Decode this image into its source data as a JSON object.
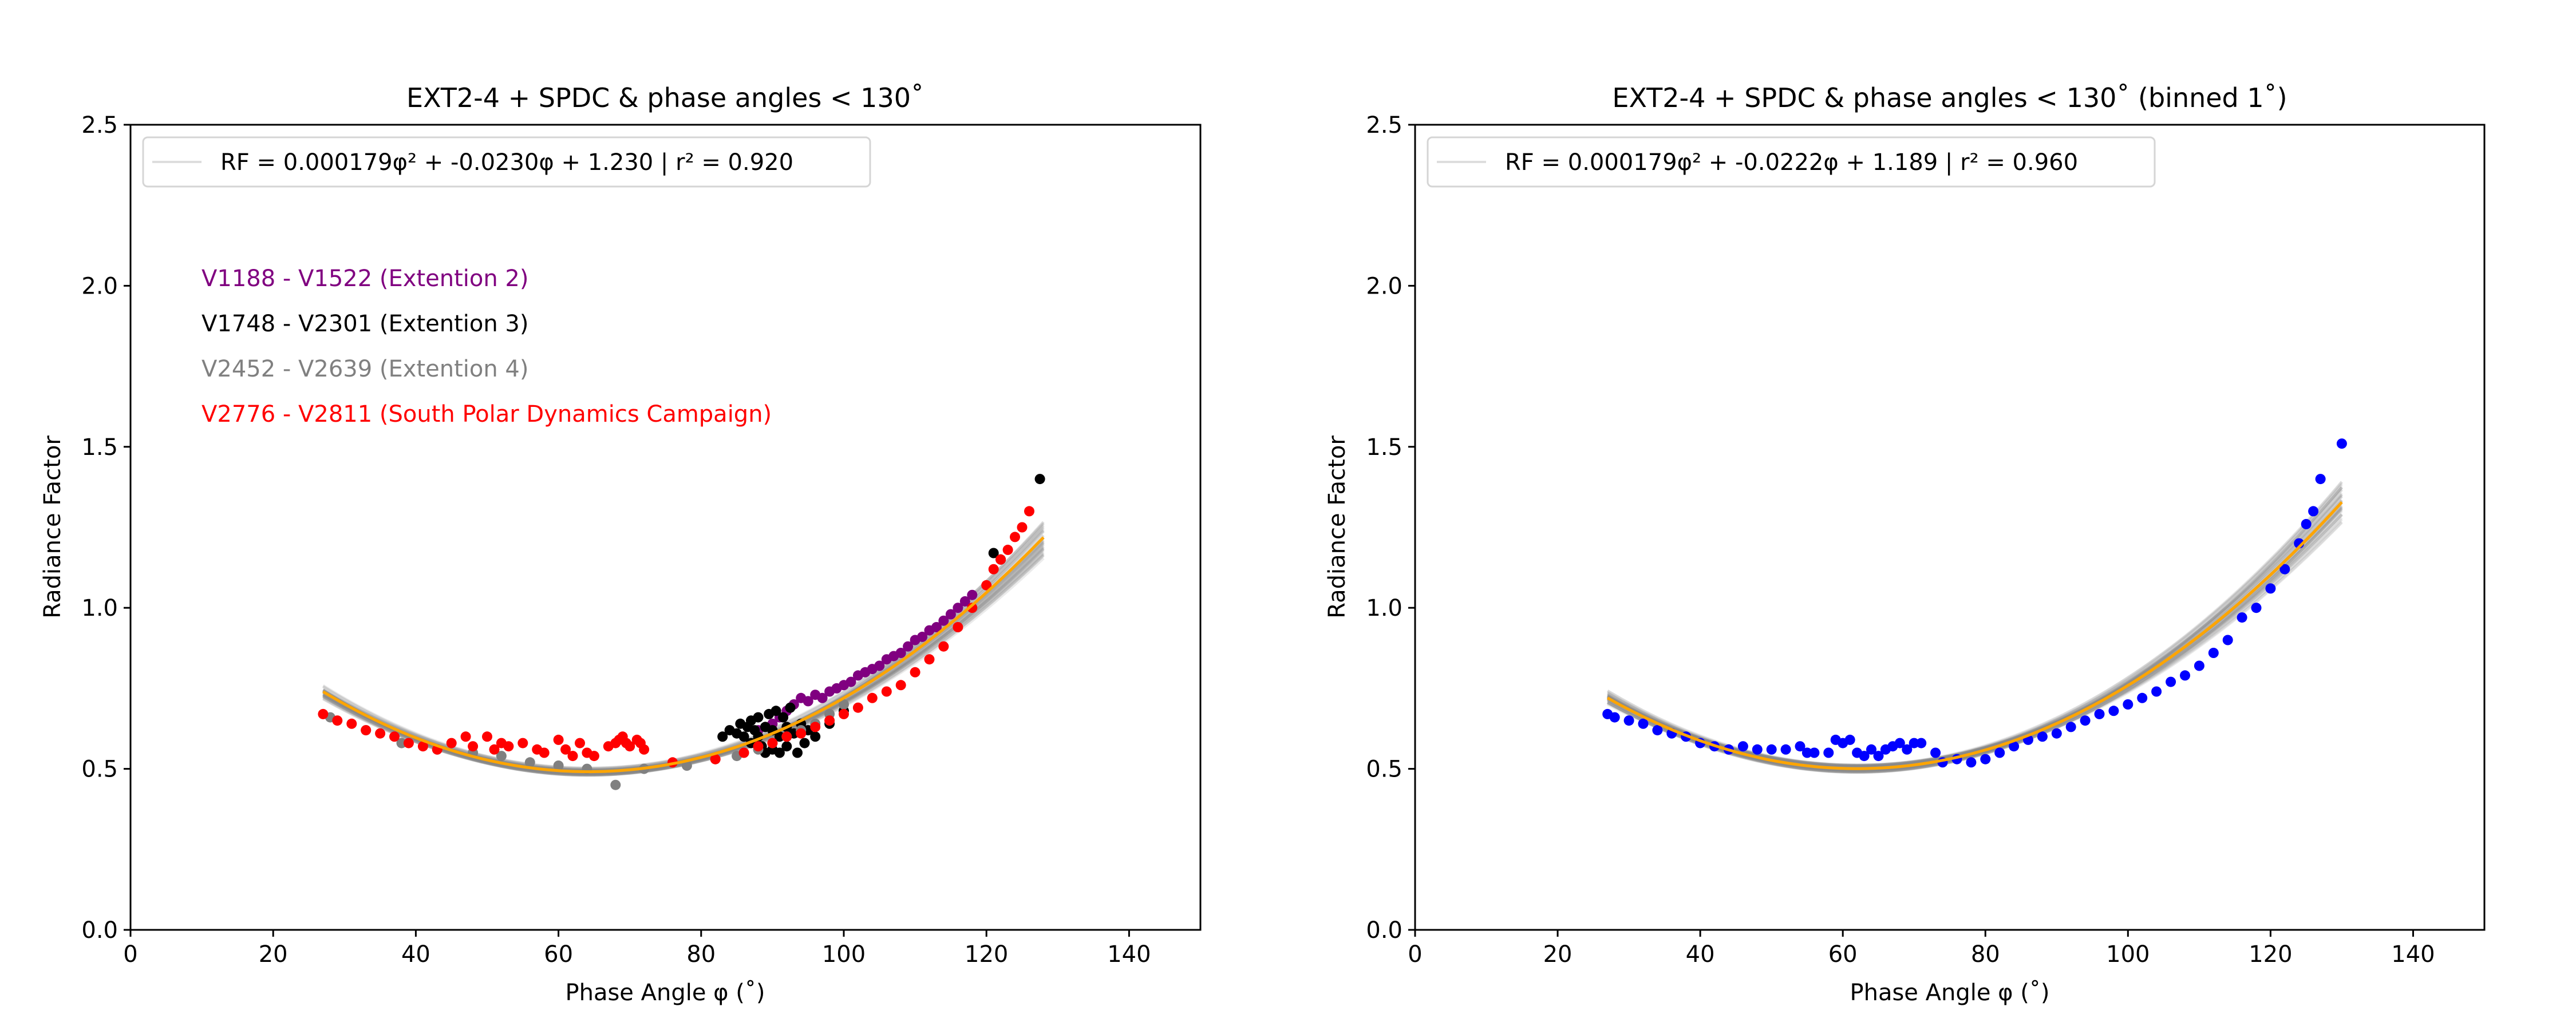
{
  "figure": {
    "colors": {
      "ext2": "#800080",
      "ext3": "#000000",
      "ext4": "#808080",
      "spdc": "#ff0000",
      "binned": "#0000ff",
      "fit": "#ffa500",
      "bootstrap": "#808080"
    }
  },
  "chart_data": [
    {
      "type": "scatter",
      "title": "EXT2-4 + SPDC & phase angles < 130˚",
      "xlabel": "Phase Angle φ (˚)",
      "ylabel": "Radiance Factor",
      "xlim": [
        0,
        150
      ],
      "ylim": [
        0.0,
        2.5
      ],
      "xticks": [
        "0",
        "20",
        "40",
        "60",
        "80",
        "100",
        "120",
        "140"
      ],
      "yticks": [
        "0.0",
        "0.5",
        "1.0",
        "1.5",
        "2.0",
        "2.5"
      ],
      "grid": false,
      "legend_position": "top-left",
      "fit": {
        "label": "RF = 0.000179φ² + -0.0230φ +   1.230  |  r² = 0.920",
        "a": 0.000179,
        "b": -0.023,
        "c": 1.23,
        "x_range": [
          27,
          128
        ],
        "r2": 0.92
      },
      "bootstrap_band": {
        "x_range": [
          27,
          128
        ],
        "n_curves": 40
      },
      "series": [
        {
          "name": "V1188 - V1522 (Extention 2)",
          "color_key": "ext2",
          "points": [
            [
              88,
              0.62
            ],
            [
              90,
              0.64
            ],
            [
              91,
              0.66
            ],
            [
              92,
              0.68
            ],
            [
              93,
              0.7
            ],
            [
              94,
              0.72
            ],
            [
              95,
              0.71
            ],
            [
              96,
              0.73
            ],
            [
              97,
              0.72
            ],
            [
              98,
              0.74
            ],
            [
              99,
              0.75
            ],
            [
              100,
              0.76
            ],
            [
              101,
              0.77
            ],
            [
              102,
              0.79
            ],
            [
              103,
              0.8
            ],
            [
              104,
              0.81
            ],
            [
              105,
              0.82
            ],
            [
              106,
              0.84
            ],
            [
              107,
              0.85
            ],
            [
              108,
              0.86
            ],
            [
              109,
              0.88
            ],
            [
              110,
              0.9
            ],
            [
              111,
              0.91
            ],
            [
              112,
              0.93
            ],
            [
              113,
              0.94
            ],
            [
              114,
              0.96
            ],
            [
              115,
              0.98
            ],
            [
              116,
              1.0
            ],
            [
              117,
              1.02
            ],
            [
              118,
              1.04
            ]
          ]
        },
        {
          "name": "V1748 - V2301 (Extention 3)",
          "color_key": "ext3",
          "points": [
            [
              83,
              0.6
            ],
            [
              84,
              0.62
            ],
            [
              85,
              0.61
            ],
            [
              85.5,
              0.64
            ],
            [
              86,
              0.6
            ],
            [
              86.5,
              0.63
            ],
            [
              87,
              0.65
            ],
            [
              87,
              0.58
            ],
            [
              87.5,
              0.62
            ],
            [
              88,
              0.66
            ],
            [
              88,
              0.6
            ],
            [
              88.5,
              0.57
            ],
            [
              89,
              0.63
            ],
            [
              89,
              0.55
            ],
            [
              89.5,
              0.67
            ],
            [
              90,
              0.62
            ],
            [
              90,
              0.56
            ],
            [
              90.5,
              0.68
            ],
            [
              91,
              0.6
            ],
            [
              91,
              0.55
            ],
            [
              91.5,
              0.66
            ],
            [
              92,
              0.63
            ],
            [
              92,
              0.57
            ],
            [
              92.5,
              0.69
            ],
            [
              93,
              0.61
            ],
            [
              93.5,
              0.55
            ],
            [
              94,
              0.64
            ],
            [
              94.5,
              0.58
            ],
            [
              95,
              0.62
            ],
            [
              96,
              0.6
            ],
            [
              98,
              0.64
            ],
            [
              100,
              0.68
            ],
            [
              121,
              1.17
            ],
            [
              122,
              1.15
            ],
            [
              127.5,
              1.4
            ]
          ]
        },
        {
          "name": "V2452 - V2639 (Extention 4)",
          "color_key": "ext4",
          "points": [
            [
              28,
              0.66
            ],
            [
              33,
              0.62
            ],
            [
              38,
              0.58
            ],
            [
              43,
              0.56
            ],
            [
              48,
              0.55
            ],
            [
              52,
              0.54
            ],
            [
              56,
              0.52
            ],
            [
              60,
              0.51
            ],
            [
              64,
              0.5
            ],
            [
              68,
              0.45
            ],
            [
              72,
              0.5
            ],
            [
              78,
              0.51
            ],
            [
              82,
              0.53
            ],
            [
              85,
              0.54
            ],
            [
              88,
              0.56
            ],
            [
              90,
              0.58
            ],
            [
              92,
              0.6
            ],
            [
              94,
              0.62
            ],
            [
              96,
              0.64
            ],
            [
              98,
              0.67
            ],
            [
              100,
              0.7
            ]
          ]
        },
        {
          "name": "V2776 - V2811 (South Polar Dynamics Campaign)",
          "color_key": "spdc",
          "points": [
            [
              27,
              0.67
            ],
            [
              29,
              0.65
            ],
            [
              31,
              0.64
            ],
            [
              33,
              0.62
            ],
            [
              35,
              0.61
            ],
            [
              37,
              0.6
            ],
            [
              39,
              0.58
            ],
            [
              41,
              0.57
            ],
            [
              43,
              0.56
            ],
            [
              45,
              0.58
            ],
            [
              47,
              0.6
            ],
            [
              48,
              0.57
            ],
            [
              50,
              0.6
            ],
            [
              51,
              0.56
            ],
            [
              52,
              0.58
            ],
            [
              53,
              0.57
            ],
            [
              55,
              0.58
            ],
            [
              57,
              0.56
            ],
            [
              58,
              0.55
            ],
            [
              60,
              0.59
            ],
            [
              61,
              0.56
            ],
            [
              62,
              0.54
            ],
            [
              63,
              0.58
            ],
            [
              64,
              0.55
            ],
            [
              65,
              0.54
            ],
            [
              67,
              0.57
            ],
            [
              68,
              0.58
            ],
            [
              68.5,
              0.59
            ],
            [
              69,
              0.6
            ],
            [
              69.5,
              0.58
            ],
            [
              70,
              0.57
            ],
            [
              71,
              0.59
            ],
            [
              71.5,
              0.58
            ],
            [
              72,
              0.56
            ],
            [
              76,
              0.52
            ],
            [
              82,
              0.53
            ],
            [
              86,
              0.55
            ],
            [
              88,
              0.57
            ],
            [
              90,
              0.58
            ],
            [
              92,
              0.6
            ],
            [
              94,
              0.61
            ],
            [
              96,
              0.63
            ],
            [
              98,
              0.65
            ],
            [
              100,
              0.67
            ],
            [
              102,
              0.69
            ],
            [
              104,
              0.72
            ],
            [
              106,
              0.74
            ],
            [
              108,
              0.76
            ],
            [
              110,
              0.8
            ],
            [
              112,
              0.84
            ],
            [
              114,
              0.88
            ],
            [
              116,
              0.94
            ],
            [
              118,
              1.0
            ],
            [
              120,
              1.07
            ],
            [
              121,
              1.12
            ],
            [
              122,
              1.15
            ],
            [
              123,
              1.18
            ],
            [
              124,
              1.22
            ],
            [
              125,
              1.25
            ],
            [
              126,
              1.3
            ]
          ]
        }
      ]
    },
    {
      "type": "scatter",
      "title": "EXT2-4 + SPDC & phase angles < 130˚ (binned 1˚)",
      "xlabel": "Phase Angle φ (˚)",
      "ylabel": "Radiance Factor",
      "xlim": [
        0,
        150
      ],
      "ylim": [
        0.0,
        2.5
      ],
      "xticks": [
        "0",
        "20",
        "40",
        "60",
        "80",
        "100",
        "120",
        "140"
      ],
      "yticks": [
        "0.0",
        "0.5",
        "1.0",
        "1.5",
        "2.0",
        "2.5"
      ],
      "grid": false,
      "legend_position": "top-left",
      "fit": {
        "label": "RF = 0.000179φ² + -0.0222φ +   1.189  |  r² = 0.960",
        "a": 0.000179,
        "b": -0.0222,
        "c": 1.189,
        "x_range": [
          27,
          130
        ],
        "r2": 0.96
      },
      "bootstrap_band": {
        "x_range": [
          27,
          130
        ],
        "n_curves": 40
      },
      "series": [
        {
          "color_key": "binned",
          "points": [
            [
              27,
              0.67
            ],
            [
              28,
              0.66
            ],
            [
              30,
              0.65
            ],
            [
              32,
              0.64
            ],
            [
              34,
              0.62
            ],
            [
              36,
              0.61
            ],
            [
              38,
              0.6
            ],
            [
              40,
              0.58
            ],
            [
              42,
              0.57
            ],
            [
              44,
              0.56
            ],
            [
              46,
              0.57
            ],
            [
              48,
              0.56
            ],
            [
              50,
              0.56
            ],
            [
              52,
              0.56
            ],
            [
              54,
              0.57
            ],
            [
              55,
              0.55
            ],
            [
              56,
              0.55
            ],
            [
              58,
              0.55
            ],
            [
              59,
              0.59
            ],
            [
              60,
              0.58
            ],
            [
              61,
              0.59
            ],
            [
              62,
              0.55
            ],
            [
              63,
              0.54
            ],
            [
              64,
              0.56
            ],
            [
              65,
              0.54
            ],
            [
              66,
              0.56
            ],
            [
              67,
              0.57
            ],
            [
              68,
              0.58
            ],
            [
              69,
              0.56
            ],
            [
              70,
              0.58
            ],
            [
              71,
              0.58
            ],
            [
              73,
              0.55
            ],
            [
              74,
              0.52
            ],
            [
              76,
              0.53
            ],
            [
              78,
              0.52
            ],
            [
              80,
              0.53
            ],
            [
              82,
              0.55
            ],
            [
              84,
              0.57
            ],
            [
              86,
              0.59
            ],
            [
              88,
              0.6
            ],
            [
              90,
              0.61
            ],
            [
              92,
              0.63
            ],
            [
              94,
              0.65
            ],
            [
              96,
              0.67
            ],
            [
              98,
              0.68
            ],
            [
              100,
              0.7
            ],
            [
              102,
              0.72
            ],
            [
              104,
              0.74
            ],
            [
              106,
              0.77
            ],
            [
              108,
              0.79
            ],
            [
              110,
              0.82
            ],
            [
              112,
              0.86
            ],
            [
              114,
              0.9
            ],
            [
              116,
              0.97
            ],
            [
              118,
              1.0
            ],
            [
              120,
              1.06
            ],
            [
              122,
              1.12
            ],
            [
              124,
              1.2
            ],
            [
              125,
              1.26
            ],
            [
              126,
              1.3
            ],
            [
              127,
              1.4
            ],
            [
              130,
              1.51
            ]
          ]
        }
      ]
    }
  ]
}
